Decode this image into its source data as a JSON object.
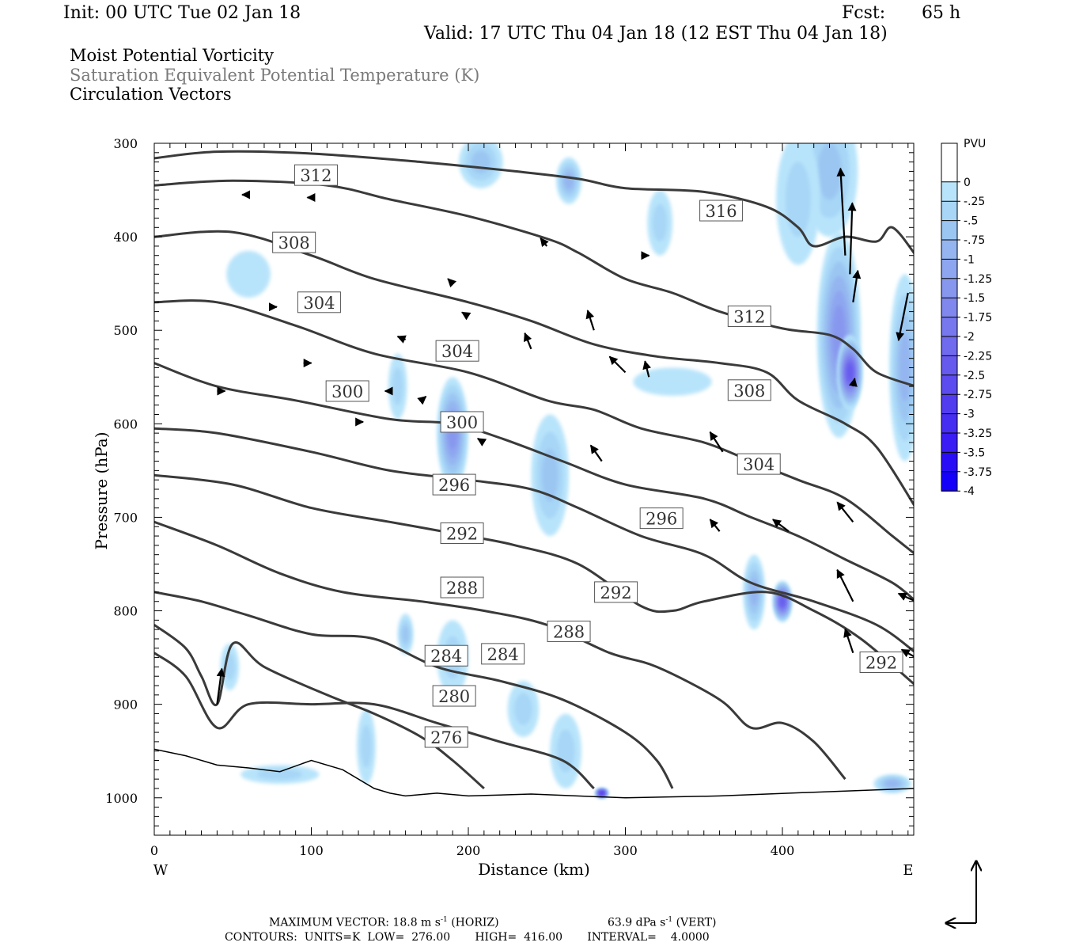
{
  "header": {
    "init": "Init: 00 UTC Tue 02 Jan 18",
    "fcst_label": "Fcst:",
    "fcst_value": "65 h",
    "valid": "Valid: 17 UTC Thu 04 Jan 18 (12 EST Thu 04 Jan 18)"
  },
  "fields": {
    "line1": "Moist Potential Vorticity",
    "line2": "Saturation Equivalent Potential Temperature (K)",
    "line3": "Circulation Vectors"
  },
  "footer": {
    "max_vector": "MAXIMUM VECTOR:  18.8 m s",
    "max_vector_exp": "-1",
    "max_vector_h": " (HORIZ)",
    "max_vector_v": "63.9 dPa s",
    "max_vector_v_exp": "-1",
    "max_vector_vert": " (VERT)",
    "contours": "CONTOURS:  UNITS=K  LOW=  276.00       HIGH=  416.00       INTERVAL=    4.0000"
  },
  "chart_data": {
    "type": "line",
    "title": "Moist Potential Vorticity / Saturation Equivalent Potential Temperature (K) / Circulation Vectors",
    "xlabel": "Distance (km)",
    "ylabel": "Pressure (hPa)",
    "xlim": [
      0,
      485
    ],
    "ylim": [
      1040,
      300
    ],
    "x_ticks": [
      "0",
      "100",
      "200",
      "300",
      "400"
    ],
    "y_ticks": [
      "300",
      "400",
      "500",
      "600",
      "700",
      "800",
      "900",
      "1000"
    ],
    "x_end_labels": {
      "left": "W",
      "right": "E"
    },
    "colorbar": {
      "units": "PVU",
      "labels": [
        "0",
        "-.25",
        "-.5",
        "-.75",
        "-1",
        "-1.25",
        "-1.5",
        "-1.75",
        "-2",
        "-2.25",
        "-2.5",
        "-2.75",
        "-3",
        "-3.25",
        "-3.5",
        "-3.75",
        "-4"
      ],
      "colors": [
        "#ffffff",
        "#ffffff",
        "#b8e4fb",
        "#a7d6f6",
        "#9bc6f2",
        "#94b5f0",
        "#8ea6ef",
        "#8797ee",
        "#8088ee",
        "#7878ee",
        "#6f6aee",
        "#665aee",
        "#5c4cef",
        "#523cf0",
        "#462df2",
        "#3a1df4",
        "#2a0df7",
        "#1400fa"
      ]
    },
    "contour_labels": [
      {
        "text": "312",
        "x": 103,
        "p": 334
      },
      {
        "text": "316",
        "x": 361,
        "p": 372
      },
      {
        "text": "308",
        "x": 89,
        "p": 406
      },
      {
        "text": "304",
        "x": 105,
        "p": 470
      },
      {
        "text": "312",
        "x": 379,
        "p": 485
      },
      {
        "text": "304",
        "x": 193,
        "p": 522
      },
      {
        "text": "300",
        "x": 123,
        "p": 565
      },
      {
        "text": "308",
        "x": 379,
        "p": 564
      },
      {
        "text": "300",
        "x": 196,
        "p": 598
      },
      {
        "text": "304",
        "x": 385,
        "p": 643
      },
      {
        "text": "296",
        "x": 191,
        "p": 665
      },
      {
        "text": "296",
        "x": 323,
        "p": 701
      },
      {
        "text": "292",
        "x": 196,
        "p": 717
      },
      {
        "text": "288",
        "x": 196,
        "p": 775
      },
      {
        "text": "292",
        "x": 294,
        "p": 780
      },
      {
        "text": "288",
        "x": 264,
        "p": 822
      },
      {
        "text": "284",
        "x": 186,
        "p": 848
      },
      {
        "text": "284",
        "x": 222,
        "p": 846
      },
      {
        "text": "292",
        "x": 463,
        "p": 855
      },
      {
        "text": "280",
        "x": 191,
        "p": 891
      },
      {
        "text": "276",
        "x": 186,
        "p": 935
      }
    ],
    "isentropes": [
      {
        "theta": 316,
        "points": [
          [
            0,
            316
          ],
          [
            40,
            309
          ],
          [
            100,
            311
          ],
          [
            170,
            320
          ],
          [
            230,
            330
          ],
          [
            270,
            338
          ],
          [
            300,
            348
          ],
          [
            350,
            352
          ],
          [
            390,
            368
          ],
          [
            410,
            390
          ],
          [
            420,
            410
          ],
          [
            440,
            400
          ],
          [
            460,
            405
          ],
          [
            470,
            390
          ],
          [
            485,
            420
          ]
        ]
      },
      {
        "theta": 312,
        "points": [
          [
            0,
            345
          ],
          [
            50,
            340
          ],
          [
            110,
            345
          ],
          [
            150,
            360
          ],
          [
            200,
            378
          ],
          [
            250,
            402
          ],
          [
            270,
            417
          ],
          [
            300,
            445
          ],
          [
            330,
            460
          ],
          [
            360,
            480
          ],
          [
            400,
            498
          ],
          [
            430,
            505
          ],
          [
            445,
            520
          ],
          [
            460,
            545
          ],
          [
            485,
            560
          ]
        ]
      },
      {
        "theta": 308,
        "points": [
          [
            0,
            400
          ],
          [
            50,
            395
          ],
          [
            100,
            420
          ],
          [
            140,
            445
          ],
          [
            200,
            470
          ],
          [
            240,
            490
          ],
          [
            280,
            515
          ],
          [
            320,
            528
          ],
          [
            360,
            535
          ],
          [
            390,
            545
          ],
          [
            410,
            575
          ],
          [
            440,
            600
          ],
          [
            460,
            625
          ],
          [
            485,
            690
          ]
        ]
      },
      {
        "theta": 304,
        "points": [
          [
            0,
            470
          ],
          [
            40,
            470
          ],
          [
            90,
            495
          ],
          [
            140,
            525
          ],
          [
            200,
            545
          ],
          [
            250,
            575
          ],
          [
            280,
            585
          ],
          [
            310,
            605
          ],
          [
            350,
            620
          ],
          [
            380,
            640
          ],
          [
            410,
            660
          ],
          [
            440,
            680
          ],
          [
            470,
            720
          ],
          [
            485,
            740
          ]
        ]
      },
      {
        "theta": 300,
        "points": [
          [
            0,
            535
          ],
          [
            40,
            560
          ],
          [
            90,
            575
          ],
          [
            150,
            595
          ],
          [
            190,
            600
          ],
          [
            220,
            615
          ],
          [
            260,
            640
          ],
          [
            300,
            665
          ],
          [
            350,
            680
          ],
          [
            380,
            700
          ],
          [
            410,
            720
          ],
          [
            440,
            745
          ],
          [
            470,
            770
          ],
          [
            485,
            790
          ]
        ]
      },
      {
        "theta": 296,
        "points": [
          [
            0,
            605
          ],
          [
            40,
            610
          ],
          [
            100,
            630
          ],
          [
            150,
            650
          ],
          [
            200,
            660
          ],
          [
            240,
            670
          ],
          [
            270,
            690
          ],
          [
            310,
            720
          ],
          [
            350,
            740
          ],
          [
            380,
            770
          ],
          [
            420,
            790
          ],
          [
            460,
            815
          ],
          [
            485,
            845
          ]
        ]
      },
      {
        "theta": 292,
        "points": [
          [
            0,
            655
          ],
          [
            50,
            665
          ],
          [
            100,
            690
          ],
          [
            150,
            705
          ],
          [
            200,
            720
          ],
          [
            230,
            730
          ],
          [
            270,
            750
          ],
          [
            310,
            795
          ],
          [
            330,
            800
          ],
          [
            350,
            790
          ],
          [
            390,
            780
          ],
          [
            420,
            800
          ],
          [
            450,
            830
          ],
          [
            485,
            880
          ]
        ]
      },
      {
        "theta": 288,
        "points": [
          [
            0,
            705
          ],
          [
            40,
            730
          ],
          [
            80,
            760
          ],
          [
            120,
            780
          ],
          [
            170,
            790
          ],
          [
            210,
            800
          ],
          [
            250,
            815
          ],
          [
            290,
            845
          ],
          [
            320,
            860
          ],
          [
            360,
            895
          ],
          [
            380,
            925
          ],
          [
            400,
            920
          ],
          [
            420,
            940
          ],
          [
            440,
            980
          ]
        ]
      },
      {
        "theta": 284,
        "points": [
          [
            0,
            780
          ],
          [
            30,
            790
          ],
          [
            60,
            805
          ],
          [
            100,
            825
          ],
          [
            140,
            830
          ],
          [
            180,
            860
          ],
          [
            220,
            875
          ],
          [
            260,
            895
          ],
          [
            300,
            930
          ],
          [
            320,
            960
          ],
          [
            330,
            990
          ]
        ]
      },
      {
        "theta": 280,
        "points": [
          [
            0,
            845
          ],
          [
            20,
            870
          ],
          [
            40,
            925
          ],
          [
            60,
            900
          ],
          [
            100,
            900
          ],
          [
            140,
            900
          ],
          [
            180,
            920
          ],
          [
            220,
            940
          ],
          [
            260,
            960
          ],
          [
            280,
            990
          ]
        ]
      },
      {
        "theta": 276,
        "points": [
          [
            0,
            815
          ],
          [
            20,
            840
          ],
          [
            30,
            870
          ],
          [
            40,
            900
          ],
          [
            50,
            835
          ],
          [
            70,
            860
          ],
          [
            110,
            890
          ],
          [
            140,
            910
          ],
          [
            170,
            935
          ],
          [
            190,
            960
          ],
          [
            210,
            990
          ]
        ]
      }
    ],
    "pv_blobs": [
      {
        "x": 436,
        "p": 505,
        "rx": 14,
        "rp": 110,
        "level": 7
      },
      {
        "x": 443,
        "p": 545,
        "rx": 8,
        "rp": 40,
        "level": 11
      },
      {
        "x": 430,
        "p": 330,
        "rx": 18,
        "rp": 70,
        "level": 4
      },
      {
        "x": 410,
        "p": 360,
        "rx": 14,
        "rp": 70,
        "level": 3
      },
      {
        "x": 478,
        "p": 540,
        "rx": 10,
        "rp": 100,
        "level": 5
      },
      {
        "x": 190,
        "p": 610,
        "rx": 10,
        "rp": 60,
        "level": 7
      },
      {
        "x": 252,
        "p": 655,
        "rx": 12,
        "rp": 65,
        "level": 4
      },
      {
        "x": 208,
        "p": 320,
        "rx": 14,
        "rp": 28,
        "level": 4
      },
      {
        "x": 264,
        "p": 340,
        "rx": 8,
        "rp": 25,
        "level": 5
      },
      {
        "x": 322,
        "p": 385,
        "rx": 8,
        "rp": 35,
        "level": 3
      },
      {
        "x": 60,
        "p": 440,
        "rx": 14,
        "rp": 25,
        "level": 2
      },
      {
        "x": 155,
        "p": 560,
        "rx": 6,
        "rp": 35,
        "level": 3
      },
      {
        "x": 330,
        "p": 555,
        "rx": 25,
        "rp": 15,
        "level": 2
      },
      {
        "x": 382,
        "p": 780,
        "rx": 7,
        "rp": 40,
        "level": 5
      },
      {
        "x": 400,
        "p": 790,
        "rx": 6,
        "rp": 22,
        "level": 11
      },
      {
        "x": 48,
        "p": 860,
        "rx": 6,
        "rp": 25,
        "level": 3
      },
      {
        "x": 160,
        "p": 825,
        "rx": 5,
        "rp": 22,
        "level": 4
      },
      {
        "x": 190,
        "p": 850,
        "rx": 10,
        "rp": 40,
        "level": 3
      },
      {
        "x": 235,
        "p": 905,
        "rx": 10,
        "rp": 30,
        "level": 3
      },
      {
        "x": 262,
        "p": 950,
        "rx": 10,
        "rp": 40,
        "level": 3
      },
      {
        "x": 285,
        "p": 995,
        "rx": 4,
        "rp": 5,
        "level": 14
      },
      {
        "x": 135,
        "p": 945,
        "rx": 6,
        "rp": 40,
        "level": 3
      },
      {
        "x": 470,
        "p": 985,
        "rx": 12,
        "rp": 10,
        "level": 5
      },
      {
        "x": 80,
        "p": 975,
        "rx": 25,
        "rp": 10,
        "level": 3
      }
    ],
    "vectors": [
      {
        "x": 440,
        "p": 420,
        "u": -6,
        "w": -110
      },
      {
        "x": 443,
        "p": 440,
        "u": 3,
        "w": -90
      },
      {
        "x": 445,
        "p": 470,
        "u": 6,
        "w": -40
      },
      {
        "x": 445,
        "p": 560,
        "u": 2,
        "w": -10
      },
      {
        "x": 480,
        "p": 460,
        "u": -12,
        "w": 60
      },
      {
        "x": 280,
        "p": 500,
        "u": -8,
        "w": -25
      },
      {
        "x": 240,
        "p": 520,
        "u": -8,
        "w": -20
      },
      {
        "x": 300,
        "p": 545,
        "u": -20,
        "w": -20
      },
      {
        "x": 285,
        "p": 640,
        "u": -14,
        "w": -20
      },
      {
        "x": 362,
        "p": 630,
        "u": -16,
        "w": -25
      },
      {
        "x": 404,
        "p": 715,
        "u": -20,
        "w": -15
      },
      {
        "x": 445,
        "p": 705,
        "u": -20,
        "w": -25
      },
      {
        "x": 445,
        "p": 790,
        "u": -20,
        "w": -40
      },
      {
        "x": 445,
        "p": 845,
        "u": -10,
        "w": -30
      },
      {
        "x": 485,
        "p": 790,
        "u": -22,
        "w": -10
      },
      {
        "x": 485,
        "p": 850,
        "u": -18,
        "w": -10
      },
      {
        "x": 40,
        "p": 900,
        "u": 6,
        "w": -45
      },
      {
        "x": 360,
        "p": 715,
        "u": -12,
        "w": -15
      },
      {
        "x": 315,
        "p": 550,
        "u": -5,
        "w": -20
      },
      {
        "x": 75,
        "p": 475,
        "u": 6,
        "w": 0
      },
      {
        "x": 40,
        "p": 565,
        "u": 10,
        "w": 0
      },
      {
        "x": 95,
        "p": 535,
        "u": 10,
        "w": 0
      },
      {
        "x": 150,
        "p": 565,
        "u": -6,
        "w": 0
      },
      {
        "x": 170,
        "p": 575,
        "u": 6,
        "w": -5
      },
      {
        "x": 210,
        "p": 620,
        "u": -8,
        "w": -5
      },
      {
        "x": 130,
        "p": 598,
        "u": 6,
        "w": 0
      },
      {
        "x": 160,
        "p": 510,
        "u": -10,
        "w": -4
      },
      {
        "x": 60,
        "p": 355,
        "u": -8,
        "w": 0
      },
      {
        "x": 100,
        "p": 358,
        "u": -5,
        "w": 0
      },
      {
        "x": 190,
        "p": 450,
        "u": -6,
        "w": -6
      },
      {
        "x": 200,
        "p": 485,
        "u": -8,
        "w": -5
      },
      {
        "x": 250,
        "p": 410,
        "u": -8,
        "w": -10
      },
      {
        "x": 310,
        "p": 420,
        "u": 10,
        "w": 0
      }
    ]
  }
}
